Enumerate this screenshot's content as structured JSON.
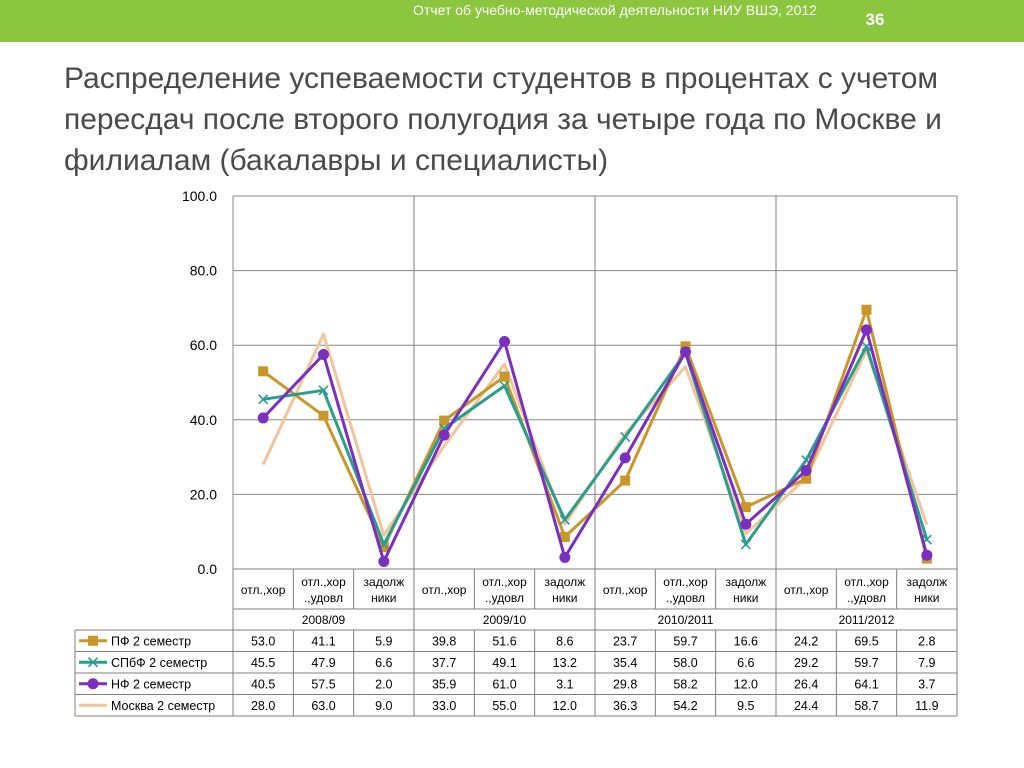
{
  "header": {
    "report_title": "Отчет об учебно-методической деятельности НИУ ВШЭ, 2012",
    "page_number": "36"
  },
  "slide_title": "Распределение успеваемости студентов в процентах с учетом пересдач  после второго полугодия за четыре года  по Москве и филиалам (бакалавры и специалисты)",
  "colors": {
    "header_bar": "#8cc63f",
    "title_text": "#4a4a4a"
  },
  "chart_data": {
    "type": "line",
    "categories": [
      [
        "отл.,хор"
      ],
      [
        "отл.,хор",
        ".,удовл"
      ],
      [
        "задолж",
        "ники"
      ],
      [
        "отл.,хор"
      ],
      [
        "отл.,хор",
        ".,удовл"
      ],
      [
        "задолж",
        "ники"
      ],
      [
        "отл.,хор"
      ],
      [
        "отл.,хор",
        ".,удовл"
      ],
      [
        "задолж",
        "ники"
      ],
      [
        "отл.,хор"
      ],
      [
        "отл.,хор",
        ".,удовл"
      ],
      [
        "задолж",
        "ники"
      ]
    ],
    "groups": [
      "2008/09",
      "2009/10",
      "2010/2011",
      "2011/2012"
    ],
    "ylim": [
      0,
      100
    ],
    "yticks": [
      "0.0",
      "20.0",
      "40.0",
      "60.0",
      "80.0",
      "100.0"
    ],
    "grid": true,
    "legend": "table-below",
    "series": [
      {
        "name": "ПФ 2 семестр",
        "color": "#c9962a",
        "marker": "square",
        "values": [
          53.0,
          41.1,
          5.9,
          39.8,
          51.6,
          8.6,
          23.7,
          59.7,
          16.6,
          24.2,
          69.5,
          2.8
        ],
        "labels": [
          "53.0",
          "41.1",
          "5.9",
          "39.8",
          "51.6",
          "8.6",
          "23.7",
          "59.7",
          "16.6",
          "24.2",
          "69.5",
          "2.8"
        ]
      },
      {
        "name": "СПбФ 2 семестр",
        "color": "#2a9d8f",
        "marker": "x",
        "values": [
          45.5,
          47.9,
          6.6,
          37.7,
          49.1,
          13.2,
          35.4,
          58.0,
          6.6,
          29.2,
          59.7,
          7.9
        ],
        "labels": [
          "45.5",
          "47.9",
          "6.6",
          "37.7",
          "49.1",
          "13.2",
          "35.4",
          "58.0",
          "6.6",
          "29.2",
          "59.7",
          "7.9"
        ]
      },
      {
        "name": "НФ 2 семестр",
        "color": "#7b2fbe",
        "marker": "circle",
        "values": [
          40.5,
          57.5,
          2.0,
          35.9,
          61.0,
          3.1,
          29.8,
          58.2,
          12.0,
          26.4,
          64.1,
          3.7
        ],
        "labels": [
          "40.5",
          "57.5",
          "2.0",
          "35.9",
          "61.0",
          "3.1",
          "29.8",
          "58.2",
          "12.0",
          "26.4",
          "64.1",
          "3.7"
        ]
      },
      {
        "name": "Москва 2 семестр",
        "color": "#f2c49b",
        "marker": "none",
        "values": [
          28.0,
          63.0,
          9.0,
          33.0,
          55.0,
          12.0,
          36.3,
          54.2,
          9.5,
          24.4,
          58.7,
          11.9
        ],
        "labels": [
          "28.0",
          "63.0",
          "9.0",
          "33.0",
          "55.0",
          "12.0",
          "36.3",
          "54.2",
          "9.5",
          "24.4",
          "58.7",
          "11.9"
        ]
      }
    ]
  }
}
